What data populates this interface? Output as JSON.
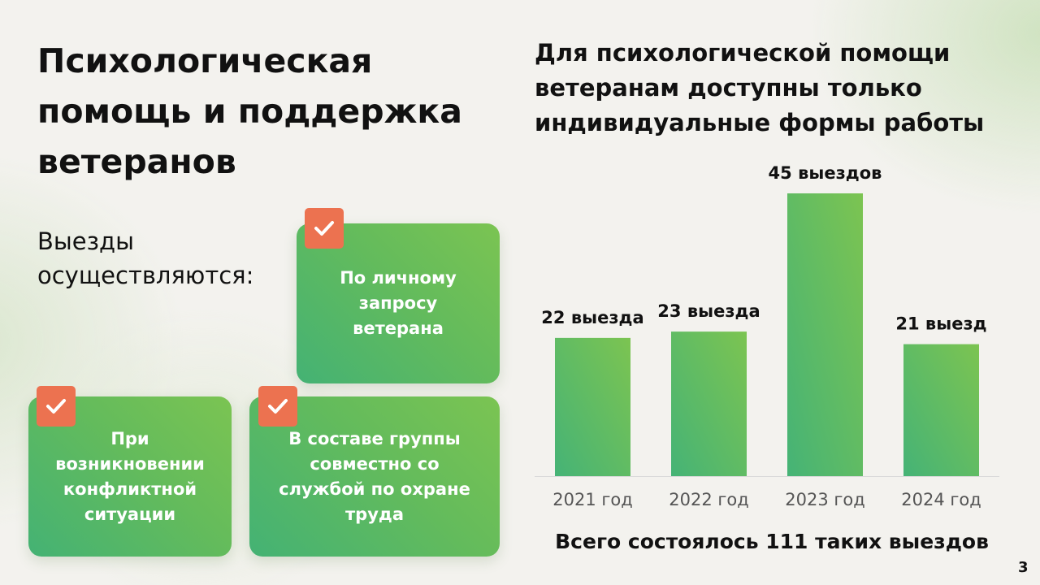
{
  "slide": {
    "title": "Психологическая помощь и поддержка ветеранов",
    "subtitle": "Выезды осуществляются:",
    "cards": [
      {
        "text": "По личному запросу ветерана",
        "icon": "check-icon"
      },
      {
        "text": "При возникновении конфликтной ситуации",
        "icon": "check-icon"
      },
      {
        "text": "В составе группы совместно со службой по охране труда",
        "icon": "check-icon"
      }
    ],
    "chart_heading": "Для психологической помощи ветеранам доступны только индивидуальные формы работы",
    "total": "Всего состоялось 111 таких выездов",
    "page_number": "3"
  },
  "colors": {
    "card_gradient_start": "#44b274",
    "card_gradient_end": "#7bc452",
    "check_badge": "#ec7250",
    "bar_gradient_start": "#45b376",
    "bar_gradient_end": "#7cc451"
  },
  "chart_data": {
    "type": "bar",
    "categories": [
      "2021 год",
      "2022 год",
      "2023 год",
      "2024 год"
    ],
    "values": [
      22,
      23,
      45,
      21
    ],
    "data_labels": [
      "22 выезда",
      "23 выезда",
      "45 выездов",
      "21 выезд"
    ],
    "title": "Для психологической помощи ветеранам доступны только индивидуальные формы работы",
    "xlabel": "",
    "ylabel": "",
    "ylim": [
      0,
      45
    ],
    "grid": false,
    "legend": "none"
  }
}
